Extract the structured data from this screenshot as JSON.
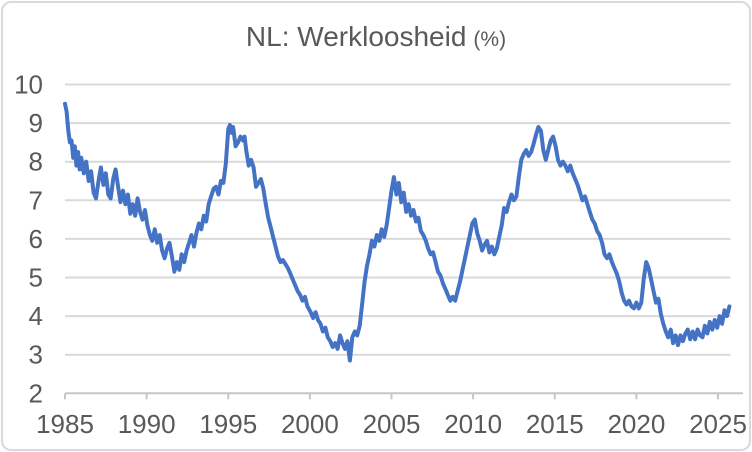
{
  "title": {
    "main": "NL: Werkloosheid",
    "unit": "(%)",
    "color": "#595959"
  },
  "frame": {
    "background": "#ffffff",
    "border_color": "#D9D9D9"
  },
  "chart_data": {
    "type": "line",
    "title": "NL: Werkloosheid (%)",
    "xlabel": "",
    "ylabel": "",
    "legend": false,
    "grid": true,
    "x_axis": {
      "tick_labels": [
        1985,
        1990,
        1995,
        2000,
        2005,
        2010,
        2015,
        2020,
        2025
      ],
      "range": [
        1985,
        2025.75
      ]
    },
    "y_axis": {
      "tick_labels": [
        2,
        3,
        4,
        5,
        6,
        7,
        8,
        9,
        10
      ],
      "range": [
        2,
        10
      ]
    },
    "colors": {
      "line": "#4472C4",
      "gridline": "#D9D9D9",
      "axis_line": "#C6C6C6",
      "tick_label": "#595959",
      "title": "#595959"
    },
    "series": [
      {
        "name": "Werkloosheid (%)",
        "color": "#4472C4",
        "points": [
          [
            1985.0,
            9.5
          ],
          [
            1985.1,
            9.3
          ],
          [
            1985.2,
            8.8
          ],
          [
            1985.3,
            8.5
          ],
          [
            1985.4,
            8.55
          ],
          [
            1985.5,
            8.1
          ],
          [
            1985.6,
            8.4
          ],
          [
            1985.7,
            7.9
          ],
          [
            1985.8,
            8.25
          ],
          [
            1985.9,
            7.8
          ],
          [
            1986.0,
            8.1
          ],
          [
            1986.15,
            7.7
          ],
          [
            1986.3,
            8.0
          ],
          [
            1986.45,
            7.5
          ],
          [
            1986.6,
            7.75
          ],
          [
            1986.75,
            7.2
          ],
          [
            1986.9,
            7.05
          ],
          [
            1987.05,
            7.5
          ],
          [
            1987.2,
            7.85
          ],
          [
            1987.35,
            7.4
          ],
          [
            1987.5,
            7.7
          ],
          [
            1987.65,
            7.15
          ],
          [
            1987.8,
            7.05
          ],
          [
            1987.95,
            7.55
          ],
          [
            1988.1,
            7.8
          ],
          [
            1988.25,
            7.35
          ],
          [
            1988.4,
            6.95
          ],
          [
            1988.55,
            7.25
          ],
          [
            1988.7,
            6.9
          ],
          [
            1988.85,
            7.15
          ],
          [
            1989.0,
            6.65
          ],
          [
            1989.15,
            6.9
          ],
          [
            1989.3,
            6.6
          ],
          [
            1989.45,
            7.05
          ],
          [
            1989.6,
            6.7
          ],
          [
            1989.75,
            6.5
          ],
          [
            1989.9,
            6.75
          ],
          [
            1990.05,
            6.35
          ],
          [
            1990.2,
            6.1
          ],
          [
            1990.35,
            5.95
          ],
          [
            1990.5,
            6.25
          ],
          [
            1990.65,
            5.9
          ],
          [
            1990.8,
            6.1
          ],
          [
            1990.95,
            5.7
          ],
          [
            1991.1,
            5.5
          ],
          [
            1991.25,
            5.75
          ],
          [
            1991.4,
            5.9
          ],
          [
            1991.55,
            5.55
          ],
          [
            1991.7,
            5.15
          ],
          [
            1991.85,
            5.4
          ],
          [
            1992.0,
            5.2
          ],
          [
            1992.15,
            5.6
          ],
          [
            1992.3,
            5.4
          ],
          [
            1992.45,
            5.7
          ],
          [
            1992.6,
            5.9
          ],
          [
            1992.75,
            6.1
          ],
          [
            1992.9,
            5.8
          ],
          [
            1993.05,
            6.15
          ],
          [
            1993.2,
            6.4
          ],
          [
            1993.35,
            6.25
          ],
          [
            1993.5,
            6.6
          ],
          [
            1993.65,
            6.45
          ],
          [
            1993.8,
            6.9
          ],
          [
            1993.95,
            7.1
          ],
          [
            1994.1,
            7.3
          ],
          [
            1994.25,
            7.35
          ],
          [
            1994.4,
            7.15
          ],
          [
            1994.55,
            7.5
          ],
          [
            1994.7,
            7.45
          ],
          [
            1994.85,
            7.95
          ],
          [
            1995.0,
            8.85
          ],
          [
            1995.1,
            8.95
          ],
          [
            1995.2,
            8.75
          ],
          [
            1995.3,
            8.9
          ],
          [
            1995.45,
            8.4
          ],
          [
            1995.6,
            8.5
          ],
          [
            1995.75,
            8.65
          ],
          [
            1995.9,
            8.55
          ],
          [
            1996.0,
            8.65
          ],
          [
            1996.1,
            8.3
          ],
          [
            1996.25,
            7.9
          ],
          [
            1996.4,
            8.05
          ],
          [
            1996.55,
            7.85
          ],
          [
            1996.7,
            7.35
          ],
          [
            1996.85,
            7.45
          ],
          [
            1997.0,
            7.55
          ],
          [
            1997.15,
            7.3
          ],
          [
            1997.3,
            6.9
          ],
          [
            1997.45,
            6.55
          ],
          [
            1997.6,
            6.3
          ],
          [
            1997.75,
            6.05
          ],
          [
            1997.9,
            5.8
          ],
          [
            1998.05,
            5.55
          ],
          [
            1998.2,
            5.4
          ],
          [
            1998.35,
            5.45
          ],
          [
            1998.5,
            5.35
          ],
          [
            1998.65,
            5.25
          ],
          [
            1998.8,
            5.1
          ],
          [
            1998.95,
            4.95
          ],
          [
            1999.1,
            4.8
          ],
          [
            1999.25,
            4.65
          ],
          [
            1999.4,
            4.55
          ],
          [
            1999.55,
            4.4
          ],
          [
            1999.7,
            4.5
          ],
          [
            1999.85,
            4.25
          ],
          [
            2000.05,
            4.1
          ],
          [
            2000.2,
            3.95
          ],
          [
            2000.35,
            4.1
          ],
          [
            2000.5,
            3.9
          ],
          [
            2000.65,
            3.8
          ],
          [
            2000.8,
            3.6
          ],
          [
            2000.95,
            3.7
          ],
          [
            2001.1,
            3.45
          ],
          [
            2001.25,
            3.35
          ],
          [
            2001.4,
            3.2
          ],
          [
            2001.55,
            3.3
          ],
          [
            2001.7,
            3.15
          ],
          [
            2001.85,
            3.5
          ],
          [
            2002.0,
            3.3
          ],
          [
            2002.15,
            3.15
          ],
          [
            2002.3,
            3.35
          ],
          [
            2002.45,
            2.85
          ],
          [
            2002.6,
            3.45
          ],
          [
            2002.75,
            3.6
          ],
          [
            2002.9,
            3.5
          ],
          [
            2003.05,
            3.75
          ],
          [
            2003.2,
            4.3
          ],
          [
            2003.35,
            4.9
          ],
          [
            2003.5,
            5.3
          ],
          [
            2003.65,
            5.6
          ],
          [
            2003.8,
            5.95
          ],
          [
            2003.95,
            5.8
          ],
          [
            2004.1,
            6.1
          ],
          [
            2004.25,
            5.95
          ],
          [
            2004.4,
            6.25
          ],
          [
            2004.55,
            6.05
          ],
          [
            2004.7,
            6.35
          ],
          [
            2004.85,
            6.8
          ],
          [
            2005.0,
            7.25
          ],
          [
            2005.15,
            7.6
          ],
          [
            2005.3,
            7.15
          ],
          [
            2005.45,
            7.45
          ],
          [
            2005.6,
            6.95
          ],
          [
            2005.75,
            7.2
          ],
          [
            2005.9,
            6.7
          ],
          [
            2006.05,
            6.9
          ],
          [
            2006.2,
            6.6
          ],
          [
            2006.35,
            6.75
          ],
          [
            2006.5,
            6.45
          ],
          [
            2006.65,
            6.55
          ],
          [
            2006.8,
            6.2
          ],
          [
            2006.95,
            6.1
          ],
          [
            2007.1,
            5.95
          ],
          [
            2007.25,
            5.75
          ],
          [
            2007.4,
            5.6
          ],
          [
            2007.55,
            5.65
          ],
          [
            2007.7,
            5.4
          ],
          [
            2007.85,
            5.15
          ],
          [
            2008.0,
            5.05
          ],
          [
            2008.15,
            4.85
          ],
          [
            2008.3,
            4.7
          ],
          [
            2008.45,
            4.55
          ],
          [
            2008.6,
            4.4
          ],
          [
            2008.75,
            4.5
          ],
          [
            2008.9,
            4.4
          ],
          [
            2009.05,
            4.65
          ],
          [
            2009.2,
            4.9
          ],
          [
            2009.35,
            5.2
          ],
          [
            2009.5,
            5.5
          ],
          [
            2009.65,
            5.8
          ],
          [
            2009.8,
            6.1
          ],
          [
            2009.95,
            6.4
          ],
          [
            2010.1,
            6.5
          ],
          [
            2010.25,
            6.15
          ],
          [
            2010.4,
            5.95
          ],
          [
            2010.55,
            5.7
          ],
          [
            2010.7,
            5.85
          ],
          [
            2010.85,
            5.95
          ],
          [
            2011.0,
            5.65
          ],
          [
            2011.15,
            5.8
          ],
          [
            2011.3,
            5.6
          ],
          [
            2011.45,
            5.75
          ],
          [
            2011.6,
            6.05
          ],
          [
            2011.75,
            6.35
          ],
          [
            2011.9,
            6.8
          ],
          [
            2012.05,
            6.7
          ],
          [
            2012.2,
            6.95
          ],
          [
            2012.35,
            7.15
          ],
          [
            2012.5,
            7.0
          ],
          [
            2012.65,
            7.1
          ],
          [
            2012.8,
            7.6
          ],
          [
            2012.95,
            8.05
          ],
          [
            2013.1,
            8.2
          ],
          [
            2013.25,
            8.3
          ],
          [
            2013.4,
            8.15
          ],
          [
            2013.55,
            8.25
          ],
          [
            2013.7,
            8.45
          ],
          [
            2013.85,
            8.7
          ],
          [
            2014.0,
            8.9
          ],
          [
            2014.15,
            8.8
          ],
          [
            2014.3,
            8.3
          ],
          [
            2014.45,
            8.05
          ],
          [
            2014.6,
            8.3
          ],
          [
            2014.75,
            8.55
          ],
          [
            2014.9,
            8.65
          ],
          [
            2015.05,
            8.4
          ],
          [
            2015.2,
            8.05
          ],
          [
            2015.35,
            7.9
          ],
          [
            2015.5,
            8.0
          ],
          [
            2015.65,
            7.9
          ],
          [
            2015.8,
            7.75
          ],
          [
            2015.95,
            7.9
          ],
          [
            2016.1,
            7.7
          ],
          [
            2016.25,
            7.55
          ],
          [
            2016.4,
            7.4
          ],
          [
            2016.55,
            7.2
          ],
          [
            2016.7,
            7.0
          ],
          [
            2016.85,
            7.1
          ],
          [
            2017.0,
            6.9
          ],
          [
            2017.15,
            6.7
          ],
          [
            2017.3,
            6.5
          ],
          [
            2017.45,
            6.4
          ],
          [
            2017.6,
            6.2
          ],
          [
            2017.75,
            6.1
          ],
          [
            2017.9,
            5.9
          ],
          [
            2018.05,
            5.6
          ],
          [
            2018.2,
            5.5
          ],
          [
            2018.35,
            5.6
          ],
          [
            2018.5,
            5.4
          ],
          [
            2018.65,
            5.25
          ],
          [
            2018.8,
            5.1
          ],
          [
            2018.95,
            4.9
          ],
          [
            2019.1,
            4.6
          ],
          [
            2019.25,
            4.4
          ],
          [
            2019.4,
            4.3
          ],
          [
            2019.55,
            4.4
          ],
          [
            2019.7,
            4.25
          ],
          [
            2019.85,
            4.2
          ],
          [
            2020.0,
            4.35
          ],
          [
            2020.15,
            4.2
          ],
          [
            2020.3,
            4.35
          ],
          [
            2020.45,
            4.95
          ],
          [
            2020.6,
            5.4
          ],
          [
            2020.75,
            5.25
          ],
          [
            2020.9,
            4.95
          ],
          [
            2021.05,
            4.65
          ],
          [
            2021.2,
            4.35
          ],
          [
            2021.35,
            4.45
          ],
          [
            2021.5,
            4.05
          ],
          [
            2021.65,
            3.8
          ],
          [
            2021.8,
            3.6
          ],
          [
            2021.95,
            3.45
          ],
          [
            2022.1,
            3.65
          ],
          [
            2022.25,
            3.3
          ],
          [
            2022.4,
            3.5
          ],
          [
            2022.55,
            3.25
          ],
          [
            2022.7,
            3.5
          ],
          [
            2022.85,
            3.35
          ],
          [
            2023.0,
            3.55
          ],
          [
            2023.15,
            3.65
          ],
          [
            2023.3,
            3.4
          ],
          [
            2023.45,
            3.6
          ],
          [
            2023.6,
            3.4
          ],
          [
            2023.75,
            3.65
          ],
          [
            2023.9,
            3.5
          ],
          [
            2024.05,
            3.45
          ],
          [
            2024.2,
            3.75
          ],
          [
            2024.35,
            3.55
          ],
          [
            2024.5,
            3.85
          ],
          [
            2024.65,
            3.65
          ],
          [
            2024.8,
            3.9
          ],
          [
            2024.95,
            3.7
          ],
          [
            2025.1,
            4.0
          ],
          [
            2025.25,
            3.8
          ],
          [
            2025.4,
            4.15
          ],
          [
            2025.55,
            4.0
          ],
          [
            2025.7,
            4.25
          ]
        ]
      }
    ]
  }
}
